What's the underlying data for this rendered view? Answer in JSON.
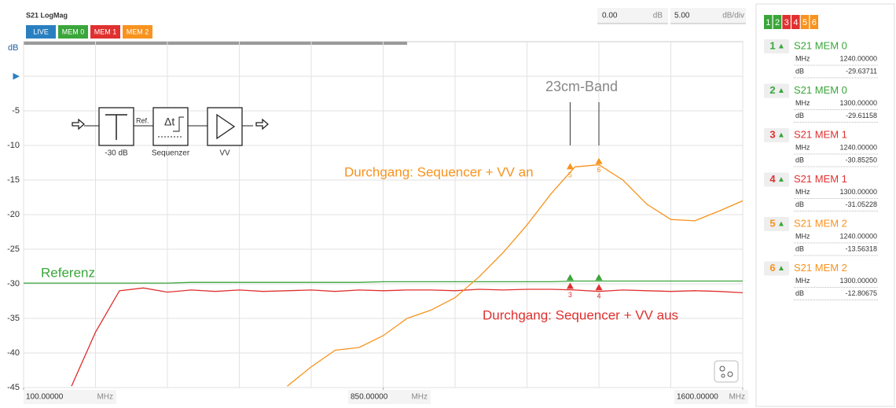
{
  "header": {
    "title": "S21 LogMag",
    "buttons": [
      "LIVE",
      "MEM 0",
      "MEM 1",
      "MEM 2"
    ],
    "ref_value": "0.00",
    "ref_unit": "dB",
    "scale_value": "5.00",
    "scale_unit": "dB/div"
  },
  "chart_data": {
    "type": "line",
    "y_unit": "dB",
    "x": [
      100,
      150,
      200,
      250,
      300,
      350,
      400,
      450,
      500,
      550,
      600,
      650,
      700,
      750,
      800,
      850,
      900,
      950,
      1000,
      1050,
      1100,
      1150,
      1200,
      1250,
      1300,
      1350,
      1400,
      1450,
      1500,
      1550,
      1600
    ],
    "series": [
      {
        "name": "MEM 0",
        "color": "#3aa63a",
        "values": [
          -29.9,
          -29.9,
          -29.9,
          -29.9,
          -29.9,
          -29.9,
          -29.9,
          -29.8,
          -29.8,
          -29.8,
          -29.8,
          -29.8,
          -29.8,
          -29.8,
          -29.8,
          -29.7,
          -29.7,
          -29.7,
          -29.7,
          -29.7,
          -29.7,
          -29.7,
          -29.7,
          -29.6,
          -29.6,
          -29.6,
          -29.6,
          -29.6,
          -29.6,
          -29.6,
          -29.6
        ]
      },
      {
        "name": "MEM 1",
        "color": "#e0302f",
        "values": [
          null,
          null,
          -44.8,
          -37,
          -31.0,
          -30.6,
          -31.2,
          -30.9,
          -31.1,
          -30.9,
          -31.1,
          -31.0,
          -30.9,
          -31.1,
          -30.9,
          -31.0,
          -30.9,
          -30.9,
          -31.0,
          -30.8,
          -30.9,
          -30.8,
          -30.8,
          -30.9,
          -31.1,
          -30.9,
          -31.0,
          -31.1,
          -31.0,
          -31.1,
          -31.3
        ]
      },
      {
        "name": "MEM 2",
        "color": "#f7931e",
        "values": [
          null,
          null,
          null,
          null,
          null,
          null,
          null,
          null,
          null,
          null,
          null,
          -44.8,
          -42,
          -39.6,
          -39.2,
          -37.5,
          -35,
          -33.8,
          -32,
          -29,
          -25.5,
          -21.5,
          -17,
          -13.1,
          -12.8,
          -15,
          -18.5,
          -20.7,
          -20.9,
          -19.5,
          -18
        ]
      }
    ],
    "xlim": [
      100,
      1600
    ],
    "ylim": [
      -45,
      5
    ],
    "yticks": [
      {
        "value": 0,
        "label": "▶"
      },
      -5,
      -10,
      -15,
      -20,
      -25,
      -30,
      -35,
      -40,
      -45
    ],
    "xgrid": [
      100,
      250,
      400,
      550,
      700,
      850,
      1000,
      1150,
      1300,
      1450,
      1600
    ],
    "xticks": [
      {
        "value": 100,
        "label": "100.00000"
      },
      {
        "value": 850,
        "label": "850.00000"
      },
      {
        "value": 1600,
        "label": "1600.00000"
      }
    ],
    "x_unit": "MHz",
    "grid": true,
    "annotations": {
      "band": "23cm-Band",
      "band_edges": [
        1240,
        1300
      ],
      "on": "Durchgang: Sequencer + VV an",
      "ref": "Referenz",
      "off": "Durchgang: Sequencer + VV aus"
    },
    "markers": [
      {
        "id": "1",
        "trace": "S21 MEM 0",
        "color": "#3aa63a",
        "mhz": 1240,
        "mhz_label": "1240.00000",
        "db": -29.63711,
        "db_label": "-29.63711"
      },
      {
        "id": "2",
        "trace": "S21 MEM 0",
        "color": "#3aa63a",
        "mhz": 1300,
        "mhz_label": "1300.00000",
        "db": -29.61158,
        "db_label": "-29.61158"
      },
      {
        "id": "3",
        "trace": "S21 MEM 1",
        "color": "#e0302f",
        "mhz": 1240,
        "mhz_label": "1240.00000",
        "db": -30.8525,
        "db_label": "-30.85250"
      },
      {
        "id": "4",
        "trace": "S21 MEM 1",
        "color": "#e0302f",
        "mhz": 1300,
        "mhz_label": "1300.00000",
        "db": -31.05228,
        "db_label": "-31.05228"
      },
      {
        "id": "5",
        "trace": "S21 MEM 2",
        "color": "#f7931e",
        "mhz": 1240,
        "mhz_label": "1240.00000",
        "db": -13.56318,
        "db_label": "-13.56318"
      },
      {
        "id": "6",
        "trace": "S21 MEM 2",
        "color": "#f7931e",
        "mhz": 1300,
        "mhz_label": "1300.00000",
        "db": -12.80675,
        "db_label": "-12.80675"
      }
    ],
    "marker_symbol": "▲",
    "marker_unit_x": "MHz",
    "marker_unit_y": "dB"
  },
  "diagram": {
    "ref": "Ref.",
    "delay": "Δt",
    "attenuator": "-30 dB",
    "sequencer": "Sequenzer",
    "amp": "VV"
  }
}
